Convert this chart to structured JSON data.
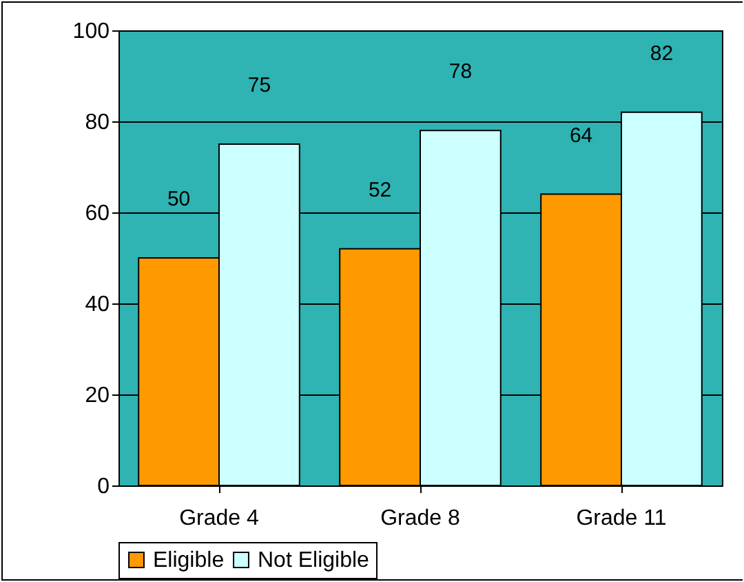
{
  "chart_data": {
    "type": "bar",
    "categories": [
      "Grade 4",
      "Grade 8",
      "Grade 11"
    ],
    "series": [
      {
        "name": "Eligible",
        "color": "#ff9900",
        "values": [
          50,
          52,
          64
        ]
      },
      {
        "name": "Not Eligible",
        "color": "#ccffff",
        "values": [
          75,
          78,
          82
        ]
      }
    ],
    "ylim": [
      0,
      100
    ],
    "yticks": [
      0,
      20,
      40,
      60,
      80,
      100
    ],
    "grid": "y",
    "legend": "bottom",
    "data_labels": true
  }
}
